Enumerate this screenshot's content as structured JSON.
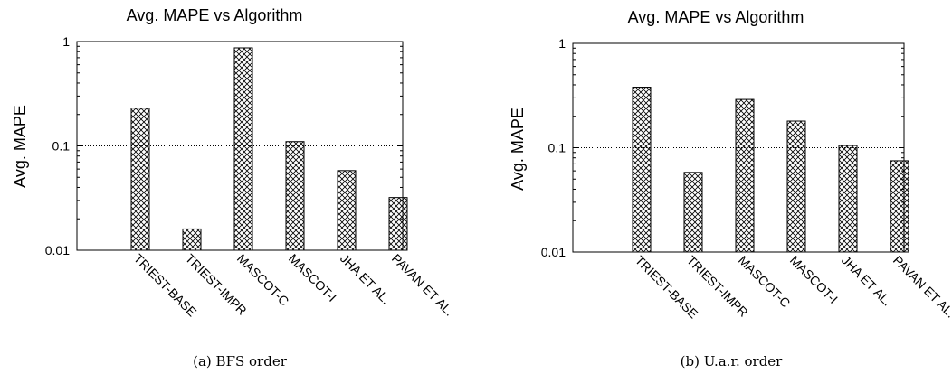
{
  "charts": [
    {
      "title": "Avg. MAPE vs Algorithm",
      "caption": "(a) BFS order",
      "chart_data": {
        "type": "bar",
        "title": "Avg. MAPE vs Algorithm",
        "xlabel": "",
        "ylabel": "Avg. MAPE",
        "yscale": "log",
        "ylim": [
          0.01,
          1
        ],
        "yticks": [
          "0.01",
          "0.1",
          "1"
        ],
        "grid": "dotted line at 0.1",
        "legend": "none",
        "categories": [
          "TRIEST-BASE",
          "TRIEST-IMPR",
          "MASCOT-C",
          "MASCOT-I",
          "JHA ET AL.",
          "PAVAN ET AL."
        ],
        "values": [
          0.23,
          0.016,
          0.87,
          0.11,
          0.058,
          0.032
        ]
      }
    },
    {
      "title": "Avg. MAPE vs Algorithm",
      "caption": "(b) U.a.r. order",
      "chart_data": {
        "type": "bar",
        "title": "Avg. MAPE vs Algorithm",
        "xlabel": "",
        "ylabel": "Avg. MAPE",
        "yscale": "log",
        "ylim": [
          0.01,
          1
        ],
        "yticks": [
          "0.01",
          "0.1",
          "1"
        ],
        "grid": "dotted line at 0.1",
        "legend": "none",
        "categories": [
          "TRIEST-BASE",
          "TRIEST-IMPR",
          "MASCOT-C",
          "MASCOT-I",
          "JHA ET AL.",
          "PAVAN ET AL."
        ],
        "values": [
          0.38,
          0.058,
          0.29,
          0.18,
          0.105,
          0.075
        ]
      }
    }
  ],
  "style": {
    "bar_stroke": "#000000",
    "hatch": "crosshatch",
    "grid_color": "#000000"
  }
}
